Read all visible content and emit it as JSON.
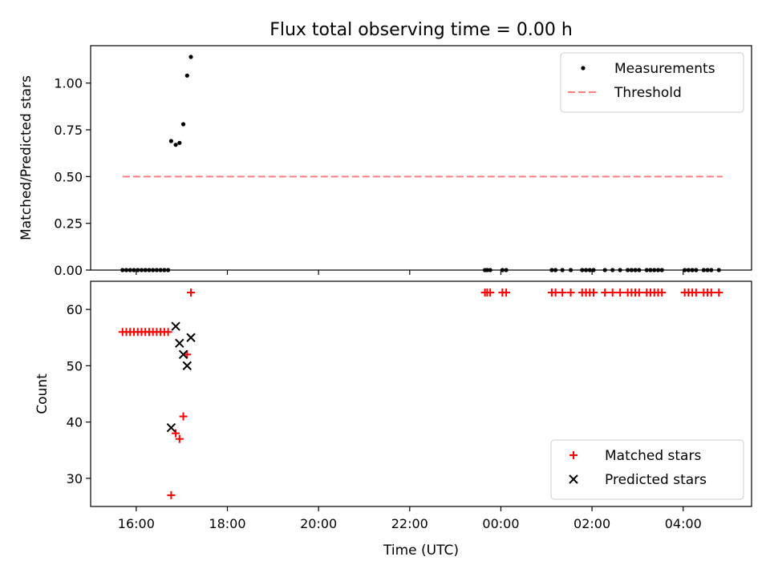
{
  "figure": {
    "title": "Flux total observing time = 0.00 h",
    "xlabel": "Time (UTC)"
  },
  "chart_data": [
    {
      "type": "scatter",
      "ylabel": "Matched/Predicted stars",
      "xlim": [
        "15:00",
        "05:30"
      ],
      "ylim": [
        0,
        1.2
      ],
      "xticks": [
        "16:00",
        "18:00",
        "20:00",
        "22:00",
        "00:00",
        "02:00",
        "04:00"
      ],
      "xtick_labels_visible": false,
      "yticks": [
        "0.00",
        "0.25",
        "0.50",
        "0.75",
        "1.00"
      ],
      "legend_position": "top-right",
      "grid": false,
      "series": [
        {
          "name": "Measurements",
          "marker": "dot",
          "color": "#000000",
          "points": [
            [
              "15:42",
              0
            ],
            [
              "15:47",
              0
            ],
            [
              "15:52",
              0
            ],
            [
              "15:57",
              0
            ],
            [
              "16:02",
              0
            ],
            [
              "16:07",
              0
            ],
            [
              "16:12",
              0
            ],
            [
              "16:17",
              0
            ],
            [
              "16:22",
              0
            ],
            [
              "16:27",
              0
            ],
            [
              "16:32",
              0
            ],
            [
              "16:37",
              0
            ],
            [
              "16:42",
              0
            ],
            [
              "16:46",
              0.69
            ],
            [
              "16:52",
              0.67
            ],
            [
              "16:57",
              0.68
            ],
            [
              "17:02",
              0.78
            ],
            [
              "17:07",
              1.04
            ],
            [
              "17:12",
              1.14
            ],
            [
              "23:39",
              0
            ],
            [
              "23:42",
              0
            ],
            [
              "23:46",
              0
            ],
            [
              "00:02",
              0
            ],
            [
              "00:07",
              0
            ],
            [
              "01:07",
              0
            ],
            [
              "01:12",
              0
            ],
            [
              "01:21",
              0
            ],
            [
              "01:32",
              0
            ],
            [
              "01:47",
              0
            ],
            [
              "01:52",
              0
            ],
            [
              "01:57",
              0
            ],
            [
              "02:02",
              0
            ],
            [
              "02:17",
              0
            ],
            [
              "02:27",
              0
            ],
            [
              "02:37",
              0
            ],
            [
              "02:47",
              0
            ],
            [
              "02:52",
              0
            ],
            [
              "02:57",
              0
            ],
            [
              "03:02",
              0
            ],
            [
              "03:12",
              0
            ],
            [
              "03:17",
              0
            ],
            [
              "03:22",
              0
            ],
            [
              "03:27",
              0
            ],
            [
              "03:32",
              0
            ],
            [
              "04:02",
              0
            ],
            [
              "04:07",
              0
            ],
            [
              "04:12",
              0
            ],
            [
              "04:17",
              0
            ],
            [
              "04:27",
              0
            ],
            [
              "04:32",
              0
            ],
            [
              "04:37",
              0
            ],
            [
              "04:47",
              0
            ]
          ]
        },
        {
          "name": "Threshold",
          "line": "dashed",
          "color": "#ff7f7f",
          "points": [
            [
              "15:42",
              0.5
            ],
            [
              "04:52",
              0.5
            ]
          ]
        }
      ]
    },
    {
      "type": "scatter",
      "ylabel": "Count",
      "xlim": [
        "15:00",
        "05:30"
      ],
      "ylim": [
        25,
        65
      ],
      "xticks": [
        "16:00",
        "18:00",
        "20:00",
        "22:00",
        "00:00",
        "02:00",
        "04:00"
      ],
      "yticks": [
        "30",
        "40",
        "50",
        "60"
      ],
      "legend_position": "bottom-right",
      "grid": false,
      "series": [
        {
          "name": "Matched stars",
          "marker": "plus",
          "color": "#ff0000",
          "points": [
            [
              "15:42",
              56
            ],
            [
              "15:47",
              56
            ],
            [
              "15:52",
              56
            ],
            [
              "15:57",
              56
            ],
            [
              "16:02",
              56
            ],
            [
              "16:07",
              56
            ],
            [
              "16:12",
              56
            ],
            [
              "16:17",
              56
            ],
            [
              "16:22",
              56
            ],
            [
              "16:27",
              56
            ],
            [
              "16:32",
              56
            ],
            [
              "16:37",
              56
            ],
            [
              "16:42",
              56
            ],
            [
              "16:46",
              27
            ],
            [
              "16:52",
              38
            ],
            [
              "16:57",
              37
            ],
            [
              "17:02",
              41
            ],
            [
              "17:07",
              52
            ],
            [
              "17:12",
              63
            ],
            [
              "23:39",
              63
            ],
            [
              "23:42",
              63
            ],
            [
              "23:46",
              63
            ],
            [
              "00:02",
              63
            ],
            [
              "00:07",
              63
            ],
            [
              "01:07",
              63
            ],
            [
              "01:12",
              63
            ],
            [
              "01:21",
              63
            ],
            [
              "01:32",
              63
            ],
            [
              "01:47",
              63
            ],
            [
              "01:52",
              63
            ],
            [
              "01:57",
              63
            ],
            [
              "02:02",
              63
            ],
            [
              "02:17",
              63
            ],
            [
              "02:27",
              63
            ],
            [
              "02:37",
              63
            ],
            [
              "02:47",
              63
            ],
            [
              "02:52",
              63
            ],
            [
              "02:57",
              63
            ],
            [
              "03:02",
              63
            ],
            [
              "03:12",
              63
            ],
            [
              "03:17",
              63
            ],
            [
              "03:22",
              63
            ],
            [
              "03:27",
              63
            ],
            [
              "03:32",
              63
            ],
            [
              "04:02",
              63
            ],
            [
              "04:07",
              63
            ],
            [
              "04:12",
              63
            ],
            [
              "04:17",
              63
            ],
            [
              "04:27",
              63
            ],
            [
              "04:32",
              63
            ],
            [
              "04:37",
              63
            ],
            [
              "04:47",
              63
            ]
          ]
        },
        {
          "name": "Predicted stars",
          "marker": "x",
          "color": "#000000",
          "points": [
            [
              "16:46",
              39
            ],
            [
              "16:52",
              57
            ],
            [
              "16:57",
              54
            ],
            [
              "17:02",
              52
            ],
            [
              "17:07",
              50
            ],
            [
              "17:12",
              55
            ]
          ]
        }
      ]
    }
  ]
}
